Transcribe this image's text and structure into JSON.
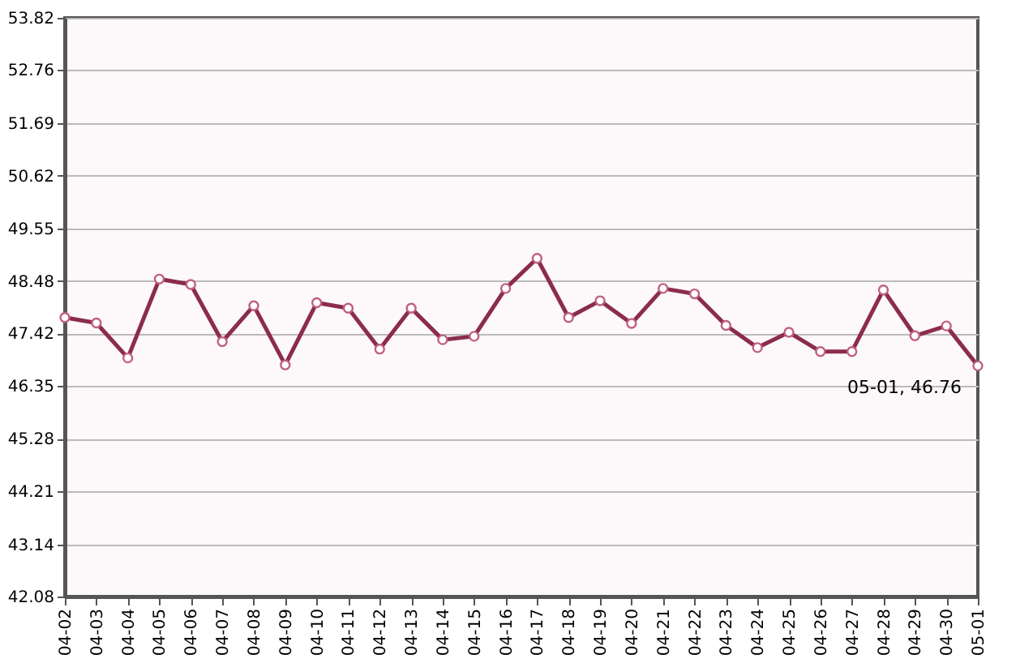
{
  "chart_data": {
    "type": "line",
    "categories": [
      "04-02",
      "04-03",
      "04-04",
      "04-05",
      "04-06",
      "04-07",
      "04-08",
      "04-09",
      "04-10",
      "04-11",
      "04-12",
      "04-13",
      "04-14",
      "04-15",
      "04-16",
      "04-17",
      "04-18",
      "04-19",
      "04-20",
      "04-21",
      "04-22",
      "04-23",
      "04-24",
      "04-25",
      "04-26",
      "04-27",
      "04-28",
      "04-29",
      "04-30",
      "05-01"
    ],
    "series": [
      {
        "color": "#8b2d4a",
        "values": [
          47.74,
          47.63,
          46.92,
          48.52,
          48.41,
          47.25,
          47.98,
          46.78,
          48.04,
          47.93,
          47.1,
          47.93,
          47.29,
          47.36,
          48.33,
          48.94,
          47.74,
          48.08,
          47.62,
          48.33,
          48.22,
          47.58,
          47.13,
          47.44,
          47.05,
          47.05,
          48.3,
          47.37,
          47.57,
          46.76
        ]
      }
    ],
    "ylim": [
      42.08,
      53.82
    ],
    "yticks": [
      42.08,
      43.14,
      44.21,
      45.28,
      46.35,
      47.42,
      48.48,
      49.55,
      50.62,
      51.69,
      52.76,
      53.82
    ],
    "grid": "y",
    "marker": "circle",
    "line_style": "solid",
    "annotations": [
      {
        "text": "05-01, 46.76",
        "x": "05-01",
        "y": 46.76
      }
    ]
  }
}
